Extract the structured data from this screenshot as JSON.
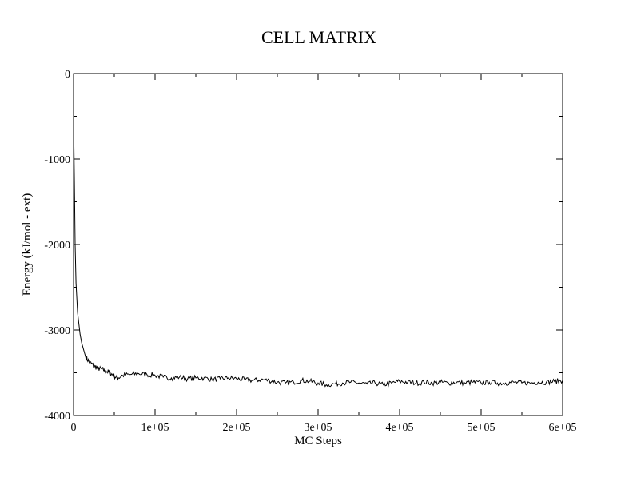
{
  "chart_data": {
    "type": "line",
    "title": "CELL MATRIX",
    "xlabel": "MC Steps",
    "ylabel": "Energy (kJ/mol - ext)",
    "xlim": [
      0,
      600000
    ],
    "ylim": [
      -4000,
      0
    ],
    "x_ticks": [
      0,
      100000,
      200000,
      300000,
      400000,
      500000,
      600000
    ],
    "x_tick_labels": [
      "0",
      "1e+05",
      "2e+05",
      "3e+05",
      "4e+05",
      "5e+05",
      "6e+05"
    ],
    "y_ticks": [
      -4000,
      -3000,
      -2000,
      -1000,
      0
    ],
    "y_tick_labels": [
      "-4000",
      "-3000",
      "-2000",
      "-1000",
      "0"
    ],
    "grid": false,
    "series": [
      {
        "color": "#000000",
        "x": [
          0,
          1000,
          2000,
          3000,
          5000,
          8000,
          10000,
          15000,
          20000,
          25000,
          30000,
          35000,
          40000,
          45000,
          50000,
          55000,
          60000,
          70000,
          80000,
          90000,
          100000,
          110000,
          120000,
          130000,
          140000,
          150000,
          160000,
          170000,
          180000,
          190000,
          200000,
          210000,
          220000,
          230000,
          240000,
          250000,
          260000,
          270000,
          280000,
          290000,
          300000,
          310000,
          320000,
          330000,
          340000,
          350000,
          360000,
          370000,
          380000,
          390000,
          400000,
          410000,
          420000,
          430000,
          440000,
          450000,
          460000,
          470000,
          480000,
          490000,
          500000,
          510000,
          520000,
          530000,
          540000,
          550000,
          560000,
          570000,
          580000,
          590000,
          600000
        ],
        "y": [
          -500,
          -1200,
          -2000,
          -2450,
          -2800,
          -3050,
          -3150,
          -3320,
          -3380,
          -3420,
          -3450,
          -3460,
          -3480,
          -3500,
          -3540,
          -3560,
          -3530,
          -3520,
          -3510,
          -3520,
          -3530,
          -3550,
          -3560,
          -3550,
          -3570,
          -3560,
          -3560,
          -3580,
          -3570,
          -3560,
          -3570,
          -3580,
          -3590,
          -3580,
          -3590,
          -3610,
          -3620,
          -3610,
          -3590,
          -3600,
          -3620,
          -3640,
          -3630,
          -3620,
          -3610,
          -3620,
          -3630,
          -3620,
          -3640,
          -3620,
          -3600,
          -3610,
          -3620,
          -3610,
          -3620,
          -3610,
          -3620,
          -3610,
          -3620,
          -3610,
          -3620,
          -3610,
          -3620,
          -3620,
          -3610,
          -3620,
          -3620,
          -3610,
          -3610,
          -3600,
          -3590
        ]
      }
    ]
  }
}
